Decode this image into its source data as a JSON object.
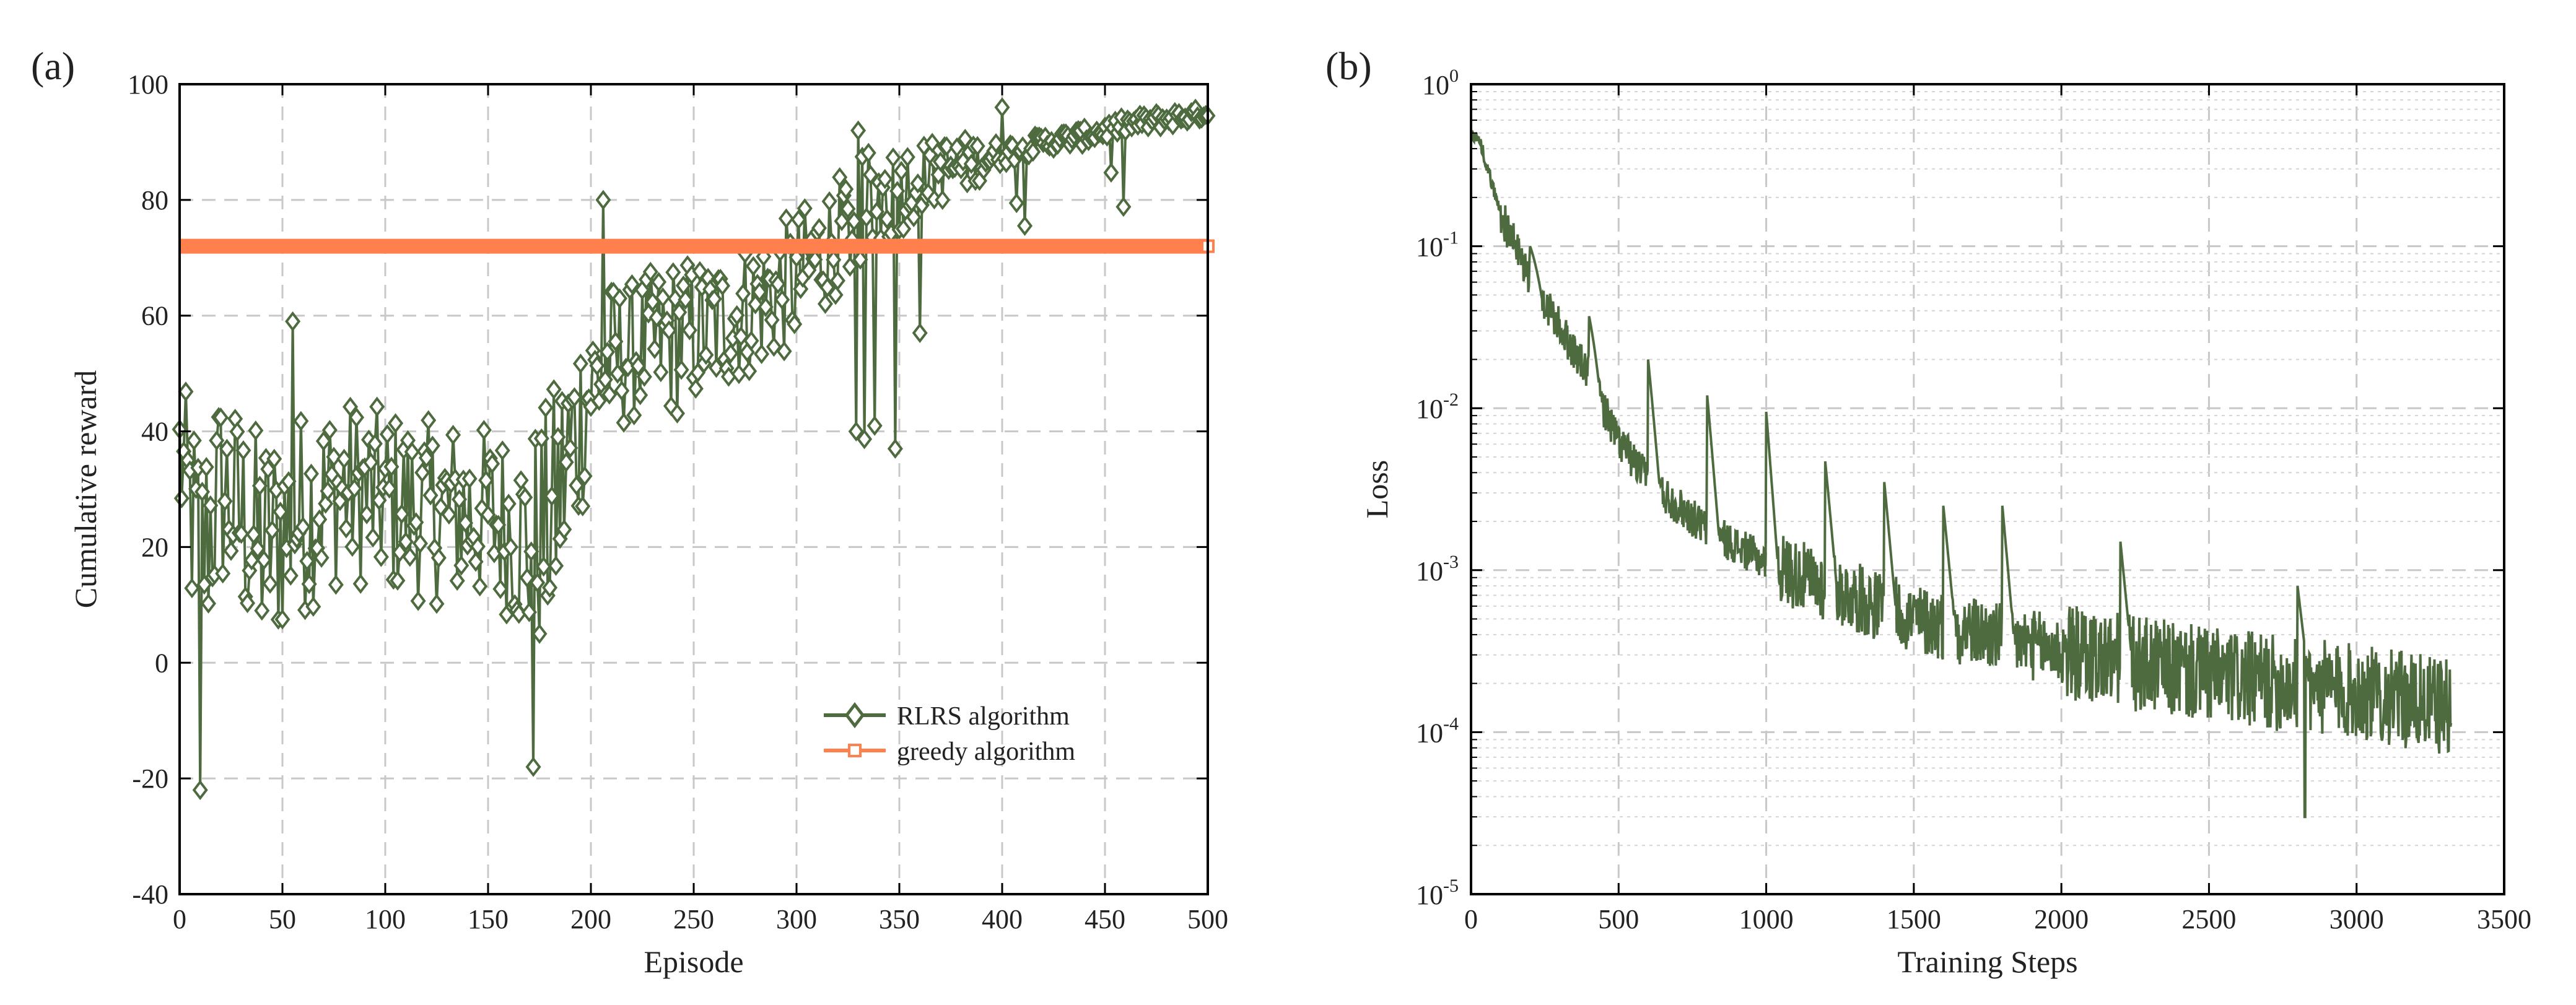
{
  "chart_data": [
    {
      "panel": "(a)",
      "type": "line",
      "xlabel": "Episode",
      "ylabel": "Cumulative reward",
      "xlim": [
        0,
        500
      ],
      "ylim": [
        -40,
        100
      ],
      "xticks": [
        0,
        50,
        100,
        150,
        200,
        250,
        300,
        350,
        400,
        450,
        500
      ],
      "yticks": [
        -40,
        -20,
        0,
        20,
        40,
        60,
        80,
        100
      ],
      "grid": true,
      "legend_position": "bottom-right",
      "series": [
        {
          "name": "RLRS  algorithm",
          "color": "#4e6b3f",
          "marker": "diamond",
          "anchors": {
            "x": [
              0,
              10,
              20,
              40,
              60,
              80,
              100,
              120,
              140,
              160,
              170,
              180,
              190,
              200,
              210,
              220,
              240,
              260,
              280,
              300,
              320,
              340,
              360,
              380,
              400,
              420,
              440,
              460,
              480,
              500
            ],
            "mean": [
              36,
              18,
              30,
              20,
              26,
              30,
              28,
              26,
              26,
              24,
              20,
              24,
              36,
              48,
              52,
              54,
              56,
              58,
              62,
              66,
              74,
              80,
              84,
              86,
              88,
              90,
              91,
              93,
              94,
              95
            ],
            "amplitude": [
              14,
              22,
              18,
              20,
              18,
              16,
              16,
              16,
              16,
              16,
              20,
              22,
              22,
              14,
              14,
              12,
              14,
              12,
              12,
              12,
              10,
              10,
              6,
              5,
              2,
              1.5,
              1.5,
              1.5,
              1.5,
              1
            ]
          },
          "notable_points": [
            {
              "x": 10,
              "y": -22
            },
            {
              "x": 55,
              "y": 59
            },
            {
              "x": 172,
              "y": -18
            },
            {
              "x": 206,
              "y": 80
            },
            {
              "x": 330,
              "y": 92
            },
            {
              "x": 348,
              "y": 37
            },
            {
              "x": 400,
              "y": 96
            }
          ]
        },
        {
          "name": "greedy algorithm",
          "color": "#ff7f4d",
          "marker": "square",
          "constant_value": 72
        }
      ]
    },
    {
      "panel": "(b)",
      "type": "line",
      "xlabel": "Training Steps",
      "ylabel": "Loss",
      "yscale": "log",
      "xlim": [
        0,
        3500
      ],
      "ylim": [
        1e-05,
        1
      ],
      "xticks": [
        0,
        500,
        1000,
        1500,
        2000,
        2500,
        3000,
        3500
      ],
      "ytick_bases": [
        "10",
        "10",
        "10",
        "10",
        "10",
        "10"
      ],
      "ytick_exponents": [
        "-5",
        "-4",
        "-3",
        "-2",
        "-1",
        "0"
      ],
      "grid": true,
      "series": [
        {
          "name": "Loss",
          "color": "#4e6b3f",
          "anchors": {
            "x": [
              0,
              30,
              100,
              200,
              300,
              400,
              500,
              600,
              700,
              800,
              1000,
              1200,
              1500,
              2000,
              2500,
              3000,
              3320
            ],
            "log10_loss": [
              -0.3,
              -0.35,
              -0.8,
              -1.2,
              -1.5,
              -1.8,
              -2.2,
              -2.45,
              -2.6,
              -2.75,
              -2.95,
              -3.1,
              -3.3,
              -3.5,
              -3.65,
              -3.75,
              -3.85
            ]
          },
          "spikes": [
            {
              "x": 200,
              "y": 0.1
            },
            {
              "x": 400,
              "y": 0.037
            },
            {
              "x": 600,
              "y": 0.02
            },
            {
              "x": 800,
              "y": 0.012
            },
            {
              "x": 1000,
              "y": 0.0095
            },
            {
              "x": 1200,
              "y": 0.0047
            },
            {
              "x": 1400,
              "y": 0.0035
            },
            {
              "x": 1600,
              "y": 0.0025
            },
            {
              "x": 1800,
              "y": 0.0025
            },
            {
              "x": 2200,
              "y": 0.0015
            },
            {
              "x": 2800,
              "y": 0.0008
            }
          ],
          "min_point": {
            "x": 2825,
            "y": 3e-05
          }
        }
      ]
    }
  ]
}
